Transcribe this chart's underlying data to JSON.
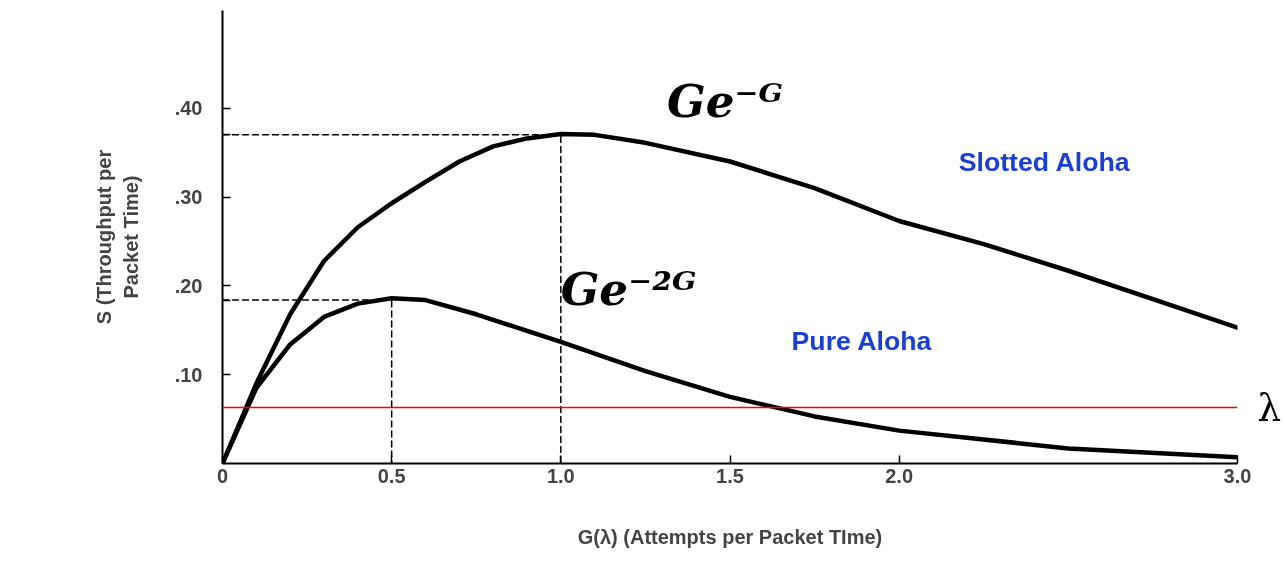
{
  "chart_data": {
    "type": "line",
    "xlabel": "G(λ) (Attempts per Packet TIme)",
    "ylabel": "S (Throughput per Packet Time)",
    "xlim": [
      0,
      3.0
    ],
    "ylim": [
      0,
      0.51
    ],
    "xticks": [
      0,
      {
        "value": 0.5,
        "label": "0.5"
      },
      {
        "value": 1,
        "label": "1.0"
      },
      {
        "value": 1.5,
        "label": "1.5"
      },
      {
        "value": 2,
        "label": "2.0"
      },
      {
        "value": 3,
        "label": "3.0"
      }
    ],
    "yticks": [
      {
        "value": 0.1,
        "label": ".10"
      },
      {
        "value": 0.184,
        "label": null
      },
      {
        "value": 0.2,
        "label": ".20"
      },
      {
        "value": 0.3,
        "label": ".30"
      },
      {
        "value": 0.37,
        "label": null
      },
      {
        "value": 0.4,
        "label": ".40"
      }
    ],
    "grid": false,
    "marker": "none",
    "series": [
      {
        "color": "#000000",
        "line_style": "solid",
        "x": [
          0,
          0.1,
          0.2,
          0.3,
          0.4,
          0.5,
          0.6,
          0.7,
          0.8,
          0.9,
          1.0,
          1.1,
          1.25,
          1.5,
          1.75,
          2.0,
          2.25,
          2.5,
          2.75,
          3.0
        ],
        "values": [
          0,
          0.09,
          0.168,
          0.228,
          0.266,
          0.293,
          0.317,
          0.34,
          0.357,
          0.366,
          0.371,
          0.37,
          0.361,
          0.34,
          0.31,
          0.273,
          0.247,
          0.217,
          0.185,
          0.153
        ]
      },
      {
        "color": "#000000",
        "line_style": "solid",
        "x": [
          0,
          0.1,
          0.2,
          0.3,
          0.4,
          0.5,
          0.6,
          0.75,
          1.0,
          1.25,
          1.5,
          1.75,
          2.0,
          2.5,
          3.0
        ],
        "values": [
          0,
          0.085,
          0.134,
          0.165,
          0.18,
          0.186,
          0.184,
          0.168,
          0.137,
          0.104,
          0.075,
          0.053,
          0.037,
          0.017,
          0.007
        ]
      },
      {
        "color": "#000000",
        "line_style": "dashed",
        "x": [
          0,
          1.0,
          1.0
        ],
        "values": [
          0.37,
          0.37,
          0
        ]
      },
      {
        "color": "#000000",
        "line_style": "dashed",
        "x": [
          0,
          0.5,
          0.5
        ],
        "values": [
          0.184,
          0.184,
          0
        ]
      }
    ],
    "ref_lines": [
      {
        "axis": "y",
        "value": 0.063,
        "label": "λ",
        "color": "#ff0000"
      }
    ],
    "annotations": [
      "Ge⁻ᴳ",
      "Ge⁻²ᴳ",
      "Slotted Aloha",
      "Pure Aloha"
    ]
  }
}
